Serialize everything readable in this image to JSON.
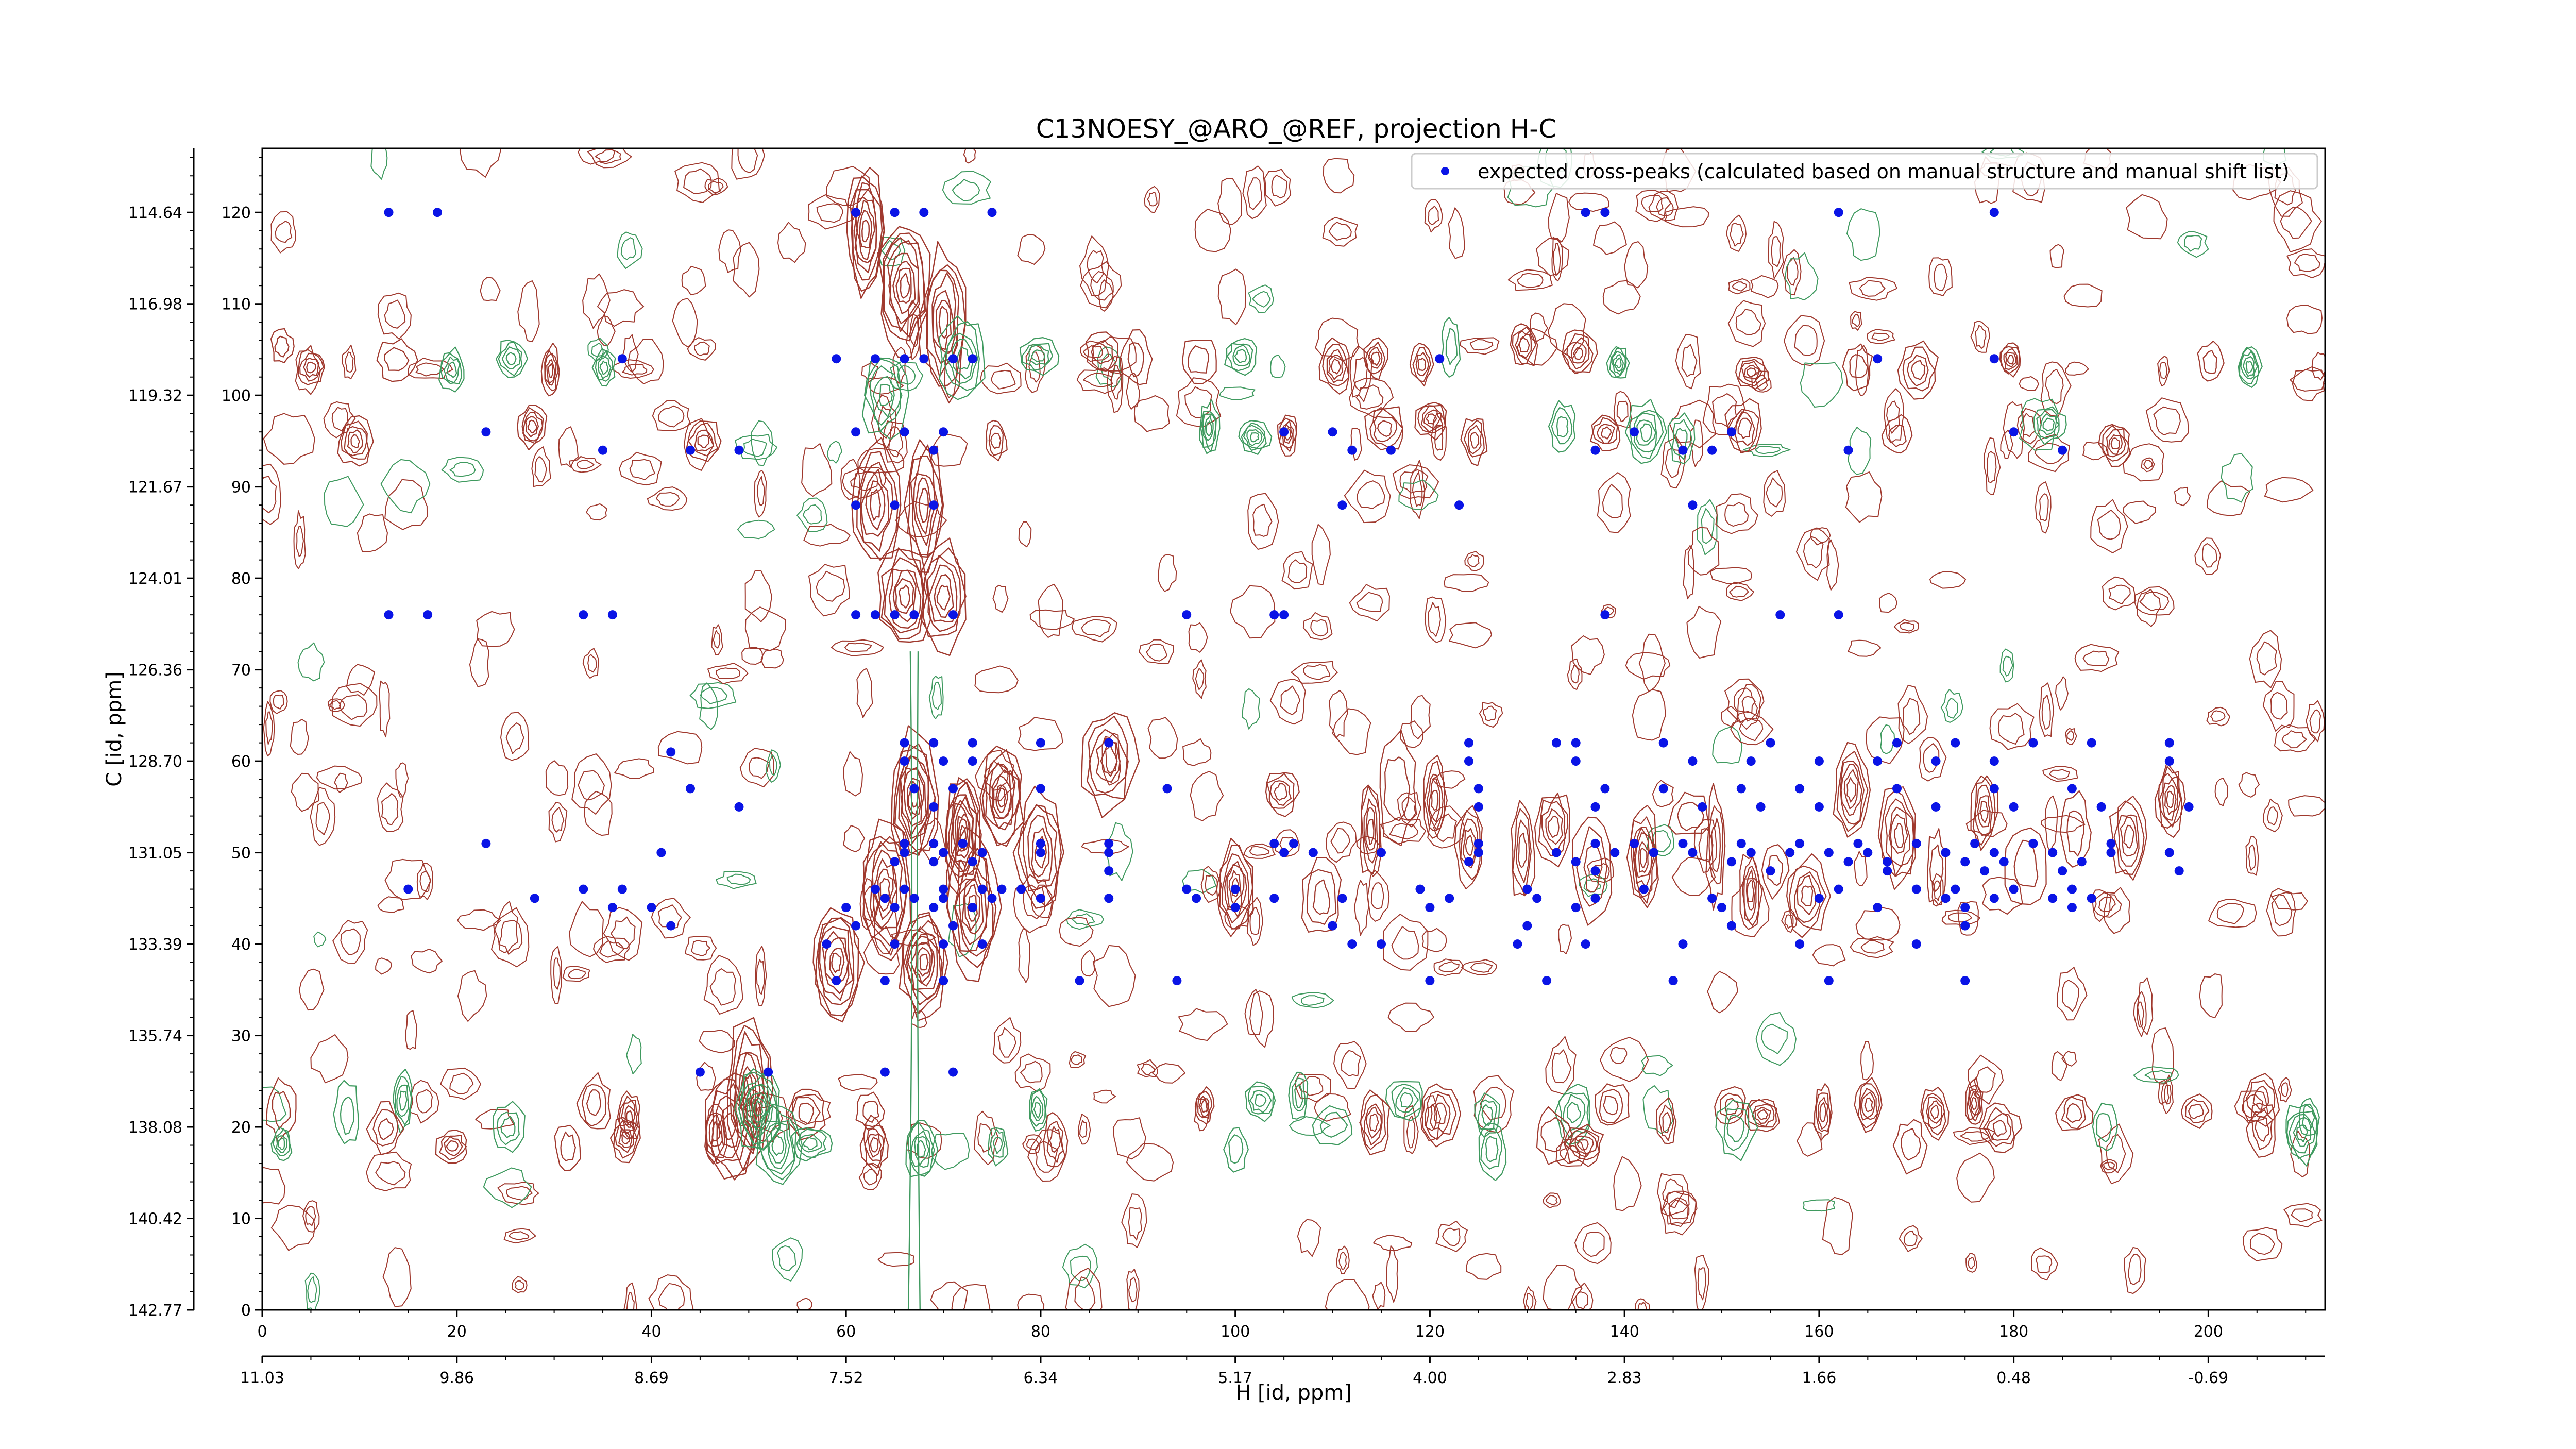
{
  "chart_data": {
    "type": "scatter",
    "title": "C13NOESY_@ARO_@REF, projection H-C",
    "xlabel": "H [id, ppm]",
    "ylabel": "C [id, ppm]",
    "x_index_range": [
      0,
      212
    ],
    "y_index_range": [
      0,
      127
    ],
    "x_index_ticks": [
      "0",
      "20",
      "40",
      "60",
      "80",
      "100",
      "120",
      "140",
      "160",
      "180",
      "200"
    ],
    "x_ppm_ticks": [
      "11.03",
      "9.86",
      "8.69",
      "7.52",
      "6.34",
      "5.17",
      "4.00",
      "2.83",
      "1.66",
      "0.48",
      "-0.69"
    ],
    "y_index_ticks": [
      "0",
      "10",
      "20",
      "30",
      "40",
      "50",
      "60",
      "70",
      "80",
      "90",
      "100",
      "110",
      "120"
    ],
    "y_ppm_ticks": [
      "142.77",
      "140.42",
      "138.08",
      "135.74",
      "133.39",
      "131.05",
      "128.70",
      "126.36",
      "124.01",
      "121.67",
      "119.32",
      "116.98",
      "114.64"
    ],
    "legend": {
      "placement": "upper right",
      "label": "expected cross-peaks (calculated based on manual structure and manual shift list)"
    },
    "colors": {
      "peak": "#0a14e6",
      "positive_contour": "#a0392e",
      "negative_contour": "#3f9a5f"
    },
    "series": [
      {
        "values": [
          [
            13,
            120
          ],
          [
            18,
            120
          ],
          [
            61,
            120
          ],
          [
            65,
            120
          ],
          [
            68,
            120
          ],
          [
            75,
            120
          ],
          [
            136,
            120
          ],
          [
            138,
            120
          ],
          [
            162,
            120
          ],
          [
            178,
            120
          ],
          [
            37,
            104
          ],
          [
            59,
            104
          ],
          [
            63,
            104
          ],
          [
            66,
            104
          ],
          [
            68,
            104
          ],
          [
            71,
            104
          ],
          [
            73,
            104
          ],
          [
            121,
            104
          ],
          [
            166,
            104
          ],
          [
            178,
            104
          ],
          [
            23,
            96
          ],
          [
            61,
            96
          ],
          [
            66,
            96
          ],
          [
            70,
            96
          ],
          [
            105,
            96
          ],
          [
            110,
            96
          ],
          [
            141,
            96
          ],
          [
            151,
            96
          ],
          [
            180,
            96
          ],
          [
            35,
            94
          ],
          [
            44,
            94
          ],
          [
            49,
            94
          ],
          [
            69,
            94
          ],
          [
            112,
            94
          ],
          [
            116,
            94
          ],
          [
            137,
            94
          ],
          [
            146,
            94
          ],
          [
            149,
            94
          ],
          [
            163,
            94
          ],
          [
            185,
            94
          ],
          [
            61,
            88
          ],
          [
            65,
            88
          ],
          [
            69,
            88
          ],
          [
            111,
            88
          ],
          [
            123,
            88
          ],
          [
            147,
            88
          ],
          [
            13,
            76
          ],
          [
            17,
            76
          ],
          [
            33,
            76
          ],
          [
            36,
            76
          ],
          [
            61,
            76
          ],
          [
            63,
            76
          ],
          [
            65,
            76
          ],
          [
            67,
            76
          ],
          [
            71,
            76
          ],
          [
            95,
            76
          ],
          [
            104,
            76
          ],
          [
            105,
            76
          ],
          [
            138,
            76
          ],
          [
            156,
            76
          ],
          [
            162,
            76
          ],
          [
            42,
            61
          ],
          [
            66,
            62
          ],
          [
            69,
            62
          ],
          [
            73,
            62
          ],
          [
            80,
            62
          ],
          [
            87,
            62
          ],
          [
            124,
            62
          ],
          [
            133,
            62
          ],
          [
            135,
            62
          ],
          [
            144,
            62
          ],
          [
            155,
            62
          ],
          [
            168,
            62
          ],
          [
            174,
            62
          ],
          [
            182,
            62
          ],
          [
            188,
            62
          ],
          [
            196,
            62
          ],
          [
            66,
            60
          ],
          [
            70,
            60
          ],
          [
            73,
            60
          ],
          [
            124,
            60
          ],
          [
            135,
            60
          ],
          [
            147,
            60
          ],
          [
            153,
            60
          ],
          [
            160,
            60
          ],
          [
            166,
            60
          ],
          [
            172,
            60
          ],
          [
            178,
            60
          ],
          [
            196,
            60
          ],
          [
            44,
            57
          ],
          [
            67,
            57
          ],
          [
            71,
            57
          ],
          [
            80,
            57
          ],
          [
            93,
            57
          ],
          [
            125,
            57
          ],
          [
            138,
            57
          ],
          [
            144,
            57
          ],
          [
            152,
            57
          ],
          [
            158,
            57
          ],
          [
            168,
            57
          ],
          [
            178,
            57
          ],
          [
            186,
            57
          ],
          [
            49,
            55
          ],
          [
            69,
            55
          ],
          [
            125,
            55
          ],
          [
            137,
            55
          ],
          [
            148,
            55
          ],
          [
            154,
            55
          ],
          [
            160,
            55
          ],
          [
            172,
            55
          ],
          [
            180,
            55
          ],
          [
            189,
            55
          ],
          [
            198,
            55
          ],
          [
            23,
            51
          ],
          [
            66,
            51
          ],
          [
            69,
            51
          ],
          [
            72,
            51
          ],
          [
            80,
            51
          ],
          [
            87,
            51
          ],
          [
            104,
            51
          ],
          [
            106,
            51
          ],
          [
            125,
            51
          ],
          [
            137,
            51
          ],
          [
            141,
            51
          ],
          [
            146,
            51
          ],
          [
            152,
            51
          ],
          [
            158,
            51
          ],
          [
            164,
            51
          ],
          [
            170,
            51
          ],
          [
            176,
            51
          ],
          [
            182,
            51
          ],
          [
            190,
            51
          ],
          [
            41,
            50
          ],
          [
            66,
            50
          ],
          [
            70,
            50
          ],
          [
            74,
            50
          ],
          [
            80,
            50
          ],
          [
            87,
            50
          ],
          [
            105,
            50
          ],
          [
            108,
            50
          ],
          [
            115,
            50
          ],
          [
            125,
            50
          ],
          [
            133,
            50
          ],
          [
            139,
            50
          ],
          [
            143,
            50
          ],
          [
            147,
            50
          ],
          [
            153,
            50
          ],
          [
            157,
            50
          ],
          [
            161,
            50
          ],
          [
            165,
            50
          ],
          [
            173,
            50
          ],
          [
            178,
            50
          ],
          [
            184,
            50
          ],
          [
            190,
            50
          ],
          [
            196,
            50
          ],
          [
            65,
            49
          ],
          [
            69,
            49
          ],
          [
            73,
            49
          ],
          [
            124,
            49
          ],
          [
            135,
            49
          ],
          [
            151,
            49
          ],
          [
            163,
            49
          ],
          [
            167,
            49
          ],
          [
            175,
            49
          ],
          [
            179,
            49
          ],
          [
            187,
            49
          ],
          [
            87,
            48
          ],
          [
            137,
            48
          ],
          [
            155,
            48
          ],
          [
            167,
            48
          ],
          [
            177,
            48
          ],
          [
            185,
            48
          ],
          [
            197,
            48
          ],
          [
            15,
            46
          ],
          [
            33,
            46
          ],
          [
            37,
            46
          ],
          [
            63,
            46
          ],
          [
            66,
            46
          ],
          [
            70,
            46
          ],
          [
            74,
            46
          ],
          [
            76,
            46
          ],
          [
            78,
            46
          ],
          [
            95,
            46
          ],
          [
            100,
            46
          ],
          [
            119,
            46
          ],
          [
            130,
            46
          ],
          [
            142,
            46
          ],
          [
            162,
            46
          ],
          [
            170,
            46
          ],
          [
            174,
            46
          ],
          [
            180,
            46
          ],
          [
            186,
            46
          ],
          [
            28,
            45
          ],
          [
            64,
            45
          ],
          [
            67,
            45
          ],
          [
            70,
            45
          ],
          [
            75,
            45
          ],
          [
            80,
            45
          ],
          [
            87,
            45
          ],
          [
            96,
            45
          ],
          [
            104,
            45
          ],
          [
            111,
            45
          ],
          [
            122,
            45
          ],
          [
            131,
            45
          ],
          [
            137,
            45
          ],
          [
            149,
            45
          ],
          [
            160,
            45
          ],
          [
            173,
            45
          ],
          [
            178,
            45
          ],
          [
            184,
            45
          ],
          [
            188,
            45
          ],
          [
            36,
            44
          ],
          [
            40,
            44
          ],
          [
            60,
            44
          ],
          [
            65,
            44
          ],
          [
            69,
            44
          ],
          [
            73,
            44
          ],
          [
            100,
            44
          ],
          [
            120,
            44
          ],
          [
            135,
            44
          ],
          [
            150,
            44
          ],
          [
            166,
            44
          ],
          [
            175,
            44
          ],
          [
            186,
            44
          ],
          [
            42,
            42
          ],
          [
            61,
            42
          ],
          [
            71,
            42
          ],
          [
            110,
            42
          ],
          [
            130,
            42
          ],
          [
            151,
            42
          ],
          [
            175,
            42
          ],
          [
            58,
            40
          ],
          [
            65,
            40
          ],
          [
            70,
            40
          ],
          [
            74,
            40
          ],
          [
            112,
            40
          ],
          [
            115,
            40
          ],
          [
            129,
            40
          ],
          [
            136,
            40
          ],
          [
            146,
            40
          ],
          [
            158,
            40
          ],
          [
            170,
            40
          ],
          [
            59,
            36
          ],
          [
            64,
            36
          ],
          [
            70,
            36
          ],
          [
            84,
            36
          ],
          [
            94,
            36
          ],
          [
            120,
            36
          ],
          [
            132,
            36
          ],
          [
            145,
            36
          ],
          [
            161,
            36
          ],
          [
            175,
            36
          ],
          [
            64,
            26
          ],
          [
            71,
            26
          ],
          [
            52,
            26
          ],
          [
            45,
            26
          ]
        ]
      }
    ]
  }
}
